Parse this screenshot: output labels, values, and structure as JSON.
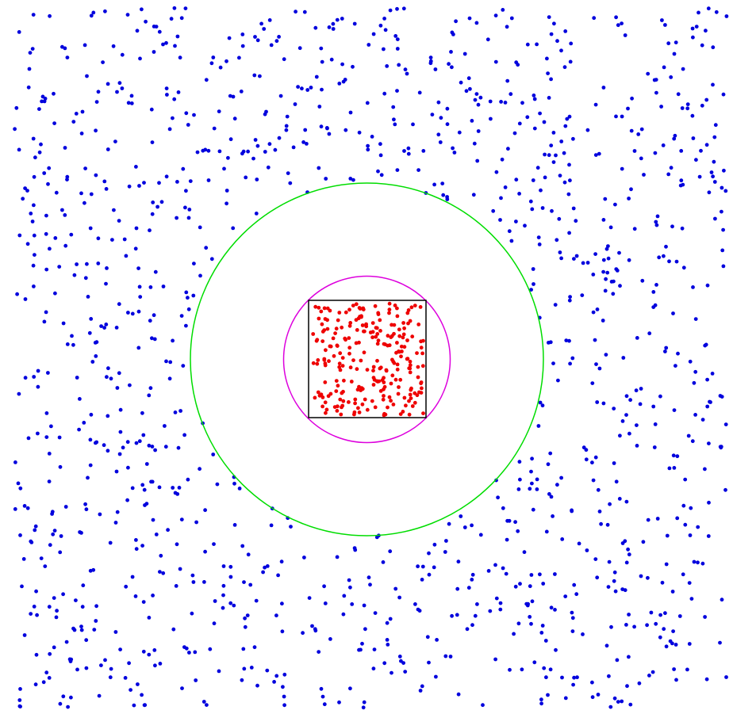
{
  "diagram": {
    "background": "#ffffff",
    "outer_dots": {
      "color": "#0000dd",
      "count": 1200,
      "seed": 7
    },
    "inner_dots": {
      "color": "#ee0000",
      "count": 250,
      "seed": 42
    },
    "outer_circle": {
      "color": "#00dd00"
    },
    "inner_circle": {
      "color": "#dd00dd"
    },
    "square": {
      "color": "#000000"
    }
  }
}
